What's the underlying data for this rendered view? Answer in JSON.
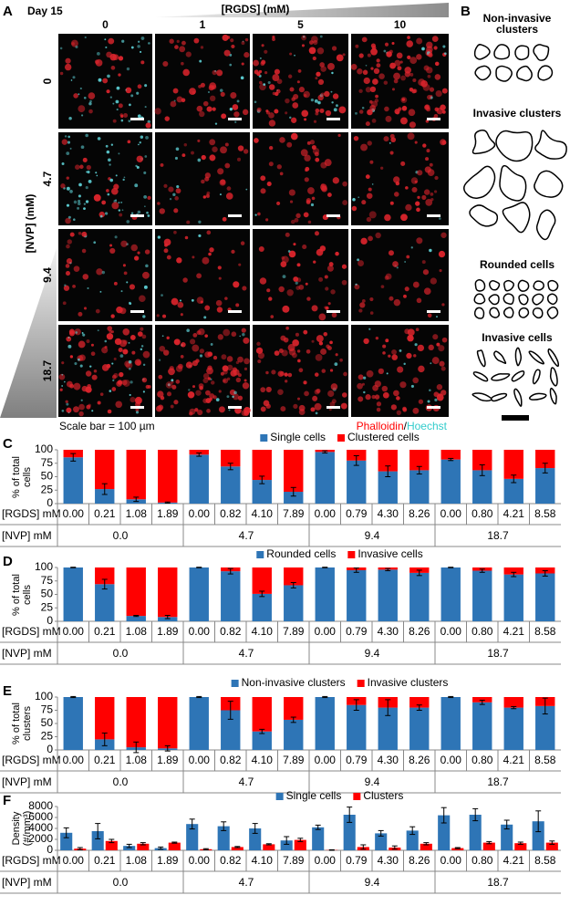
{
  "panel_a": {
    "letter": "A",
    "time": "Day 15",
    "x_title": "[RGDS] (mM)",
    "columns": [
      "0",
      "1",
      "5",
      "10"
    ],
    "y_title": "[NVP] (mM)",
    "rows": [
      "0",
      "4.7",
      "9.4",
      "18.7"
    ],
    "scale_note": "Scale bar = 100 µm",
    "stains": [
      "Phalloidin",
      "/",
      "Hoechst"
    ]
  },
  "panel_b": {
    "letter": "B",
    "groups": [
      "Non-invasive clusters",
      "Invasive clusters",
      "Rounded cells",
      "Invasive cells"
    ]
  },
  "chart_data": [
    {
      "type": "bar",
      "stacked": true,
      "panel": "C",
      "ylabel": "% of total cells",
      "category_label": "[RGDS] mM",
      "group_label": "[NVP] mM",
      "groups": [
        "0.0",
        "4.7",
        "9.4",
        "18.7"
      ],
      "categories": [
        "0.00",
        "0.21",
        "1.08",
        "1.89",
        "0.00",
        "0.82",
        "4.10",
        "7.89",
        "0.00",
        "0.79",
        "4.30",
        "8.26",
        "0.00",
        "0.80",
        "4.21",
        "8.58"
      ],
      "series": [
        {
          "name": "Single cells",
          "color": "#2e75b6",
          "values": [
            86,
            27,
            8,
            2,
            91,
            69,
            44,
            22,
            96,
            80,
            60,
            62,
            82,
            62,
            46,
            66
          ],
          "errors": [
            7,
            10,
            4,
            1,
            3,
            6,
            7,
            8,
            2,
            9,
            10,
            7,
            2,
            10,
            7,
            9
          ]
        },
        {
          "name": "Clustered cells",
          "color": "#ff0000",
          "values": [
            14,
            73,
            92,
            98,
            9,
            31,
            56,
            78,
            4,
            20,
            40,
            38,
            18,
            38,
            54,
            34
          ]
        }
      ],
      "ylim": [
        0,
        100
      ],
      "yticks": [
        0,
        25,
        50,
        75,
        100
      ]
    },
    {
      "type": "bar",
      "stacked": true,
      "panel": "D",
      "ylabel": "% of total cells",
      "category_label": "[RGDS] mM",
      "group_label": "[NVP] mM",
      "groups": [
        "0.0",
        "4.7",
        "9.4",
        "18.7"
      ],
      "categories": [
        "0.00",
        "0.21",
        "1.08",
        "1.89",
        "0.00",
        "0.82",
        "4.10",
        "7.89",
        "0.00",
        "0.79",
        "4.30",
        "8.26",
        "0.00",
        "0.80",
        "4.21",
        "8.58"
      ],
      "series": [
        {
          "name": "Rounded cells",
          "color": "#2e75b6",
          "values": [
            100,
            69,
            10,
            8,
            100,
            93,
            51,
            67,
            100,
            95,
            96,
            90,
            100,
            94,
            87,
            89
          ],
          "errors": [
            0.5,
            9,
            1,
            3,
            0.5,
            5,
            5,
            5,
            0.5,
            4,
            2,
            5,
            0.5,
            3,
            4,
            5
          ]
        },
        {
          "name": "Invasive cells",
          "color": "#ff0000",
          "values": [
            0,
            31,
            90,
            92,
            0,
            7,
            49,
            33,
            0,
            5,
            4,
            10,
            0,
            6,
            13,
            11
          ]
        }
      ],
      "ylim": [
        0,
        100
      ],
      "yticks": [
        0,
        25,
        50,
        75,
        100
      ]
    },
    {
      "type": "bar",
      "stacked": true,
      "panel": "E",
      "ylabel": "% of total clusters",
      "category_label": "[RGDS] mM",
      "group_label": "[NVP] mM",
      "groups": [
        "0.0",
        "4.7",
        "9.4",
        "18.7"
      ],
      "categories": [
        "0.00",
        "0.21",
        "1.08",
        "1.89",
        "0.00",
        "0.82",
        "4.10",
        "7.89",
        "0.00",
        "0.79",
        "4.30",
        "8.26",
        "0.00",
        "0.80",
        "4.21",
        "8.58"
      ],
      "series": [
        {
          "name": "Non-invasive clusters",
          "color": "#2e75b6",
          "values": [
            100,
            20,
            5,
            3,
            100,
            75,
            35,
            57,
            100,
            85,
            80,
            80,
            100,
            90,
            80,
            83
          ],
          "errors": [
            1,
            12,
            10,
            5,
            1,
            17,
            4,
            5,
            1,
            10,
            15,
            5,
            1,
            4,
            2,
            15
          ]
        },
        {
          "name": "Invasive clusters",
          "color": "#ff0000",
          "values": [
            0,
            80,
            95,
            97,
            0,
            25,
            65,
            43,
            0,
            15,
            20,
            20,
            0,
            10,
            20,
            17
          ]
        }
      ],
      "ylim": [
        0,
        100
      ],
      "yticks": [
        0,
        25,
        50,
        75,
        100
      ]
    },
    {
      "type": "bar",
      "stacked": false,
      "panel": "F",
      "ylabel": "Density (#/mm³)",
      "category_label": "[RGDS] mM",
      "group_label": "[NVP] mM",
      "groups": [
        "0.0",
        "4.7",
        "9.4",
        "18.7"
      ],
      "categories": [
        "0.00",
        "0.21",
        "1.08",
        "1.89",
        "0.00",
        "0.82",
        "4.10",
        "7.89",
        "0.00",
        "0.79",
        "4.30",
        "8.26",
        "0.00",
        "0.80",
        "4.21",
        "8.58"
      ],
      "series": [
        {
          "name": "Single cells",
          "color": "#2e75b6",
          "values": [
            3200,
            3500,
            800,
            400,
            4800,
            4400,
            4000,
            1800,
            4200,
            6500,
            3100,
            3600,
            6400,
            6500,
            4700,
            5300
          ],
          "errors": [
            900,
            1400,
            300,
            200,
            900,
            800,
            900,
            700,
            400,
            1400,
            500,
            700,
            1400,
            1100,
            800,
            1900
          ]
        },
        {
          "name": "Clusters",
          "color": "#ff0000",
          "values": [
            300,
            1700,
            1200,
            1400,
            200,
            600,
            1100,
            1900,
            50,
            600,
            500,
            1200,
            400,
            1400,
            1300,
            1400
          ],
          "errors": [
            200,
            300,
            200,
            100,
            100,
            100,
            100,
            300,
            50,
            400,
            300,
            200,
            100,
            200,
            200,
            300
          ]
        }
      ],
      "ylim": [
        0,
        8000
      ],
      "yticks": [
        0,
        2000,
        4000,
        6000,
        8000
      ]
    }
  ]
}
